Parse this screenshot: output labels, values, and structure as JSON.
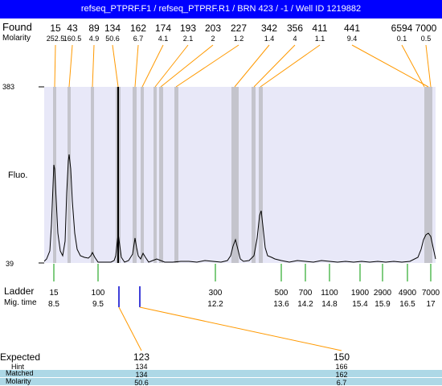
{
  "title": "refseq_PTPRF.F1 / refseq_PTPRF.R1 / BRN 423 / -1 / Well ID 1219882",
  "labels": {
    "found": "Found",
    "molarity": "Molarity",
    "fluo": "Fluo.",
    "ladder": "Ladder",
    "mig_time": "Mig. time",
    "expected": "Expected",
    "hint": "Hint",
    "matched": "Matched",
    "molarity_bottom": "Molarity"
  },
  "colors": {
    "titlebar": "#0000ff",
    "plot_bg": "#e8e8f8",
    "band": "#c4c4cc",
    "found_line": "#ff9900",
    "ladder_tick": "#009900",
    "expected_tick": "#0000cc",
    "matched_bg": "#add8e6"
  },
  "chart_data": {
    "type": "line",
    "y_axis": {
      "top_label": "383",
      "bottom_label": "39"
    },
    "found_peaks": [
      {
        "size": "15",
        "molarity": "252.5"
      },
      {
        "size": "43",
        "molarity": "160.5"
      },
      {
        "size": "89",
        "molarity": "4.9"
      },
      {
        "size": "134",
        "molarity": "50.6"
      },
      {
        "size": "162",
        "molarity": "6.7"
      },
      {
        "size": "174",
        "molarity": "4.1"
      },
      {
        "size": "193",
        "molarity": "2.1"
      },
      {
        "size": "203",
        "molarity": "2"
      },
      {
        "size": "227",
        "molarity": "1.2"
      },
      {
        "size": "342",
        "molarity": "1.4"
      },
      {
        "size": "356",
        "molarity": "4"
      },
      {
        "size": "411",
        "molarity": "1.1"
      },
      {
        "size": "441",
        "molarity": "9.4"
      },
      {
        "size": "6594",
        "molarity": "0.1"
      },
      {
        "size": "7000",
        "molarity": "0.5"
      }
    ],
    "ladder": [
      {
        "size": "15",
        "time": "8.5"
      },
      {
        "size": "100",
        "time": "9.5"
      },
      {
        "size": "300",
        "time": "12.2"
      },
      {
        "size": "500",
        "time": "13.6"
      },
      {
        "size": "700",
        "time": "14.2"
      },
      {
        "size": "1100",
        "time": "14.8"
      },
      {
        "size": "1900",
        "time": "15.4"
      },
      {
        "size": "2900",
        "time": "15.9"
      },
      {
        "size": "4900",
        "time": "16.5"
      },
      {
        "size": "7000",
        "time": "17"
      }
    ],
    "expected": [
      {
        "expected": "123",
        "hint": "134",
        "matched": "134",
        "molarity": "50.6"
      },
      {
        "expected": "150",
        "hint": "166",
        "matched": "162",
        "molarity": "6.7"
      }
    ]
  }
}
